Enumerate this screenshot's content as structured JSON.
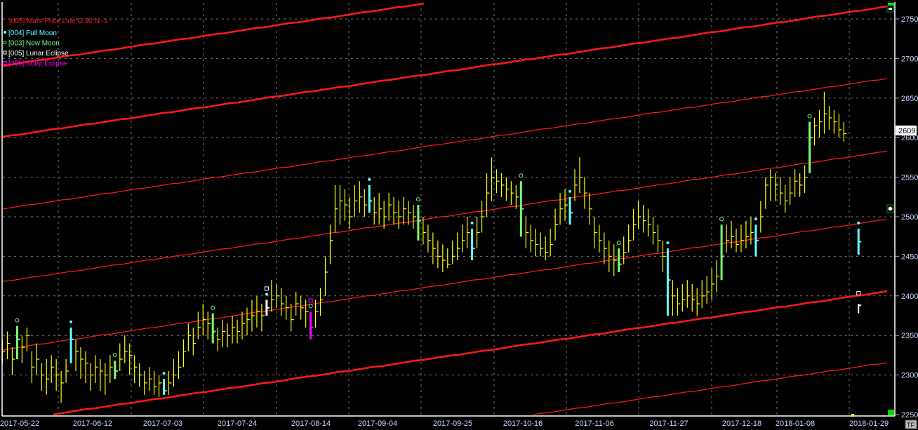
{
  "chart_data": {
    "type": "ohlc-bar",
    "title": "",
    "ylim": [
      2250,
      2772
    ],
    "yticks": [
      2250,
      2300,
      2350,
      2400,
      2450,
      2500,
      2550,
      2600,
      2650,
      2700,
      2750
    ],
    "xtick_labels": [
      "2017-05-22",
      "2017-06-12",
      "2017-07-03",
      "2017-07-24",
      "2017-08-14",
      "2017-09-04",
      "2017-09-25",
      "2017-10-16",
      "2017-11-06",
      "2017-11-27",
      "2017-12-18",
      "2018-01-08",
      "2018-01-29"
    ],
    "grid": true,
    "last_price_label": "2609",
    "legend_placement": "top-left",
    "legend": [
      {
        "label": "[005] Mars Price Line G 90 N -1",
        "color": "#ff1a1a",
        "marker": "none"
      },
      {
        "label": "[004] Full Moon",
        "color": "#6ff",
        "marker": "dot"
      },
      {
        "label": "[003] New Moon",
        "color": "#7f7",
        "marker": "circle"
      },
      {
        "label": "[005] Lunar Eclipse",
        "color": "#fff",
        "marker": "square"
      },
      {
        "label": "[006] Solar Eclipse",
        "color": "#f0f",
        "marker": "square"
      }
    ],
    "price_lines": {
      "spacing": 90,
      "values_at_end": [
        2857,
        2767,
        2676,
        2584,
        2498,
        2407,
        2317
      ],
      "values_at_start": [
        2691,
        2601,
        2510,
        2418,
        2332,
        2241,
        2151
      ],
      "thick": [
        true,
        true,
        false,
        false,
        false,
        true,
        false
      ],
      "color": "#ff1a1a"
    },
    "bar_color": "#ffff00",
    "bars_hlc": [
      [
        2345,
        2315,
        2330
      ],
      [
        2355,
        2320,
        2340
      ],
      [
        2335,
        2300,
        2320
      ],
      [
        2362,
        2320,
        2345
      ],
      [
        2350,
        2315,
        2335
      ],
      [
        2360,
        2330,
        2350
      ],
      [
        2330,
        2290,
        2310
      ],
      [
        2340,
        2300,
        2320
      ],
      [
        2315,
        2280,
        2300
      ],
      [
        2320,
        2275,
        2295
      ],
      [
        2325,
        2290,
        2310
      ],
      [
        2320,
        2280,
        2300
      ],
      [
        2305,
        2265,
        2290
      ],
      [
        2320,
        2290,
        2305
      ],
      [
        2360,
        2315,
        2345
      ],
      [
        2345,
        2305,
        2330
      ],
      [
        2335,
        2295,
        2320
      ],
      [
        2330,
        2290,
        2315
      ],
      [
        2315,
        2280,
        2300
      ],
      [
        2325,
        2290,
        2310
      ],
      [
        2320,
        2280,
        2305
      ],
      [
        2315,
        2275,
        2300
      ],
      [
        2325,
        2290,
        2310
      ],
      [
        2318,
        2295,
        2305
      ],
      [
        2340,
        2305,
        2320
      ],
      [
        2350,
        2315,
        2330
      ],
      [
        2340,
        2300,
        2325
      ],
      [
        2325,
        2290,
        2310
      ],
      [
        2315,
        2285,
        2300
      ],
      [
        2305,
        2275,
        2290
      ],
      [
        2310,
        2280,
        2295
      ],
      [
        2305,
        2275,
        2285
      ],
      [
        2300,
        2272,
        2290
      ],
      [
        2295,
        2275,
        2280
      ],
      [
        2305,
        2275,
        2290
      ],
      [
        2320,
        2285,
        2300
      ],
      [
        2330,
        2295,
        2310
      ],
      [
        2345,
        2310,
        2330
      ],
      [
        2365,
        2330,
        2350
      ],
      [
        2360,
        2325,
        2340
      ],
      [
        2380,
        2345,
        2360
      ],
      [
        2390,
        2350,
        2370
      ],
      [
        2380,
        2345,
        2365
      ],
      [
        2378,
        2340,
        2355
      ],
      [
        2360,
        2330,
        2345
      ],
      [
        2370,
        2335,
        2355
      ],
      [
        2365,
        2335,
        2350
      ],
      [
        2375,
        2340,
        2360
      ],
      [
        2370,
        2340,
        2355
      ],
      [
        2380,
        2345,
        2365
      ],
      [
        2385,
        2350,
        2370
      ],
      [
        2395,
        2355,
        2375
      ],
      [
        2400,
        2360,
        2380
      ],
      [
        2390,
        2355,
        2375
      ],
      [
        2395,
        2375,
        2385
      ],
      [
        2420,
        2380,
        2395
      ],
      [
        2415,
        2385,
        2400
      ],
      [
        2410,
        2375,
        2390
      ],
      [
        2400,
        2370,
        2385
      ],
      [
        2390,
        2355,
        2370
      ],
      [
        2405,
        2375,
        2390
      ],
      [
        2400,
        2370,
        2385
      ],
      [
        2395,
        2360,
        2380
      ],
      [
        2380,
        2345,
        2360
      ],
      [
        2395,
        2360,
        2380
      ],
      [
        2410,
        2375,
        2395
      ],
      [
        2450,
        2400,
        2430
      ],
      [
        2490,
        2440,
        2470
      ],
      [
        2540,
        2480,
        2510
      ],
      [
        2540,
        2490,
        2520
      ],
      [
        2535,
        2495,
        2515
      ],
      [
        2525,
        2485,
        2500
      ],
      [
        2540,
        2500,
        2520
      ],
      [
        2545,
        2505,
        2525
      ],
      [
        2535,
        2500,
        2515
      ],
      [
        2540,
        2505,
        2520
      ],
      [
        2525,
        2490,
        2505
      ],
      [
        2530,
        2490,
        2510
      ],
      [
        2520,
        2485,
        2500
      ],
      [
        2530,
        2495,
        2515
      ],
      [
        2525,
        2490,
        2505
      ],
      [
        2520,
        2485,
        2500
      ],
      [
        2525,
        2490,
        2510
      ],
      [
        2520,
        2490,
        2505
      ],
      [
        2515,
        2485,
        2500
      ],
      [
        2515,
        2470,
        2495
      ],
      [
        2500,
        2465,
        2480
      ],
      [
        2490,
        2455,
        2470
      ],
      [
        2480,
        2440,
        2460
      ],
      [
        2470,
        2435,
        2450
      ],
      [
        2465,
        2430,
        2445
      ],
      [
        2460,
        2435,
        2440
      ],
      [
        2470,
        2440,
        2450
      ],
      [
        2480,
        2445,
        2460
      ],
      [
        2490,
        2455,
        2470
      ],
      [
        2500,
        2460,
        2480
      ],
      [
        2485,
        2445,
        2460
      ],
      [
        2500,
        2460,
        2480
      ],
      [
        2520,
        2480,
        2500
      ],
      [
        2555,
        2500,
        2530
      ],
      [
        2575,
        2520,
        2550
      ],
      [
        2560,
        2530,
        2545
      ],
      [
        2555,
        2525,
        2540
      ],
      [
        2550,
        2520,
        2535
      ],
      [
        2545,
        2515,
        2530
      ],
      [
        2540,
        2510,
        2525
      ],
      [
        2545,
        2475,
        2510
      ],
      [
        2500,
        2460,
        2480
      ],
      [
        2490,
        2455,
        2470
      ],
      [
        2485,
        2450,
        2465
      ],
      [
        2480,
        2450,
        2460
      ],
      [
        2475,
        2445,
        2455
      ],
      [
        2485,
        2450,
        2465
      ],
      [
        2510,
        2470,
        2490
      ],
      [
        2530,
        2490,
        2510
      ],
      [
        2535,
        2495,
        2515
      ],
      [
        2525,
        2490,
        2505
      ],
      [
        2560,
        2520,
        2540
      ],
      [
        2575,
        2530,
        2550
      ],
      [
        2550,
        2510,
        2530
      ],
      [
        2530,
        2490,
        2510
      ],
      [
        2500,
        2460,
        2480
      ],
      [
        2490,
        2455,
        2470
      ],
      [
        2480,
        2440,
        2460
      ],
      [
        2470,
        2430,
        2450
      ],
      [
        2465,
        2425,
        2445
      ],
      [
        2460,
        2430,
        2440
      ],
      [
        2475,
        2440,
        2455
      ],
      [
        2490,
        2455,
        2470
      ],
      [
        2510,
        2470,
        2490
      ],
      [
        2520,
        2485,
        2500
      ],
      [
        2515,
        2480,
        2495
      ],
      [
        2510,
        2475,
        2490
      ],
      [
        2500,
        2465,
        2480
      ],
      [
        2490,
        2455,
        2470
      ],
      [
        2470,
        2430,
        2450
      ],
      [
        2460,
        2375,
        2420
      ],
      [
        2420,
        2375,
        2400
      ],
      [
        2410,
        2375,
        2390
      ],
      [
        2415,
        2380,
        2395
      ],
      [
        2420,
        2385,
        2400
      ],
      [
        2415,
        2380,
        2395
      ],
      [
        2410,
        2375,
        2390
      ],
      [
        2420,
        2385,
        2400
      ],
      [
        2425,
        2390,
        2405
      ],
      [
        2435,
        2395,
        2415
      ],
      [
        2445,
        2405,
        2425
      ],
      [
        2490,
        2420,
        2450
      ],
      [
        2490,
        2455,
        2470
      ],
      [
        2495,
        2460,
        2475
      ],
      [
        2485,
        2455,
        2465
      ],
      [
        2490,
        2455,
        2470
      ],
      [
        2495,
        2460,
        2475
      ],
      [
        2500,
        2465,
        2480
      ],
      [
        2490,
        2450,
        2470
      ],
      [
        2520,
        2480,
        2500
      ],
      [
        2550,
        2510,
        2540
      ],
      [
        2560,
        2520,
        2550
      ],
      [
        2555,
        2520,
        2540
      ],
      [
        2550,
        2515,
        2530
      ],
      [
        2540,
        2505,
        2520
      ],
      [
        2550,
        2515,
        2530
      ],
      [
        2560,
        2525,
        2545
      ],
      [
        2555,
        2525,
        2540
      ],
      [
        2565,
        2530,
        2550
      ],
      [
        2620,
        2555,
        2600
      ],
      [
        2625,
        2590,
        2615
      ],
      [
        2635,
        2600,
        2620
      ],
      [
        2658,
        2605,
        2630
      ],
      [
        2640,
        2610,
        2625
      ],
      [
        2635,
        2605,
        2620
      ],
      [
        2630,
        2600,
        2610
      ],
      [
        2620,
        2595,
        2605
      ]
    ],
    "events": {
      "new_moon": [
        3,
        23,
        43,
        85,
        106,
        126,
        147,
        165
      ],
      "full_moon": [
        14,
        33,
        75,
        96,
        116,
        136,
        154
      ],
      "lunar_eclipse": [
        54
      ],
      "solar_eclipse": [
        63
      ],
      "future_full_moon": {
        "index": 175,
        "high": 2485,
        "low": 2452
      },
      "future_lunar_eclipse": {
        "index": 175,
        "high": 2390,
        "low": 2378
      }
    },
    "colors": {
      "new_moon": "#77ff77",
      "full_moon": "#66ffff",
      "lunar_eclipse": "#ffffff",
      "solar_eclipse": "#ff00ff"
    }
  },
  "tf_label": "TF"
}
